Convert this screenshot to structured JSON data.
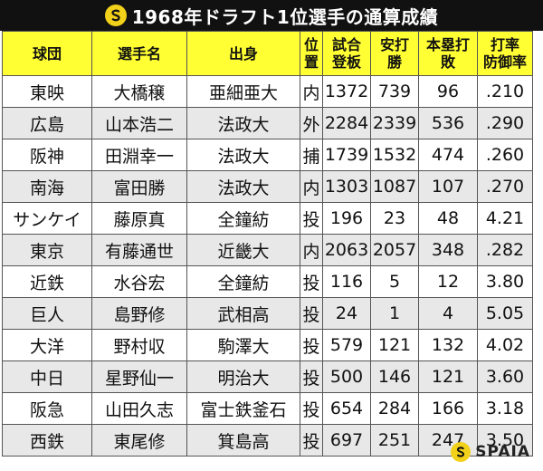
{
  "title": "1968年ドラフト1位選手の通算成績",
  "header": {
    "team": "球団",
    "player": "選手名",
    "origin": "出身",
    "position": [
      "位",
      "置"
    ],
    "games": [
      "試合",
      "登板"
    ],
    "hits": [
      "安打",
      "勝"
    ],
    "hr": [
      "本塁打",
      "敗"
    ],
    "avg": [
      "打率",
      "防御率"
    ]
  },
  "rows": [
    {
      "team": "東映",
      "player": "大橋穣",
      "origin": "亜細亜大",
      "pos": "内",
      "games": "1372",
      "hits": "739",
      "hr": "96",
      "avg": ".210"
    },
    {
      "team": "広島",
      "player": "山本浩二",
      "origin": "法政大",
      "pos": "外",
      "games": "2284",
      "hits": "2339",
      "hr": "536",
      "avg": ".290"
    },
    {
      "team": "阪神",
      "player": "田淵幸一",
      "origin": "法政大",
      "pos": "捕",
      "games": "1739",
      "hits": "1532",
      "hr": "474",
      "avg": ".260"
    },
    {
      "team": "南海",
      "player": "富田勝",
      "origin": "法政大",
      "pos": "内",
      "games": "1303",
      "hits": "1087",
      "hr": "107",
      "avg": ".270"
    },
    {
      "team": "サンケイ",
      "player": "藤原真",
      "origin": "全鐘紡",
      "pos": "投",
      "games": "196",
      "hits": "23",
      "hr": "48",
      "avg": "4.21"
    },
    {
      "team": "東京",
      "player": "有藤通世",
      "origin": "近畿大",
      "pos": "内",
      "games": "2063",
      "hits": "2057",
      "hr": "348",
      "avg": ".282"
    },
    {
      "team": "近鉄",
      "player": "水谷宏",
      "origin": "全鐘紡",
      "pos": "投",
      "games": "116",
      "hits": "5",
      "hr": "12",
      "avg": "3.80"
    },
    {
      "team": "巨人",
      "player": "島野修",
      "origin": "武相高",
      "pos": "投",
      "games": "24",
      "hits": "1",
      "hr": "4",
      "avg": "5.05"
    },
    {
      "team": "大洋",
      "player": "野村収",
      "origin": "駒澤大",
      "pos": "投",
      "games": "579",
      "hits": "121",
      "hr": "132",
      "avg": "4.02"
    },
    {
      "team": "中日",
      "player": "星野仙一",
      "origin": "明治大",
      "pos": "投",
      "games": "500",
      "hits": "146",
      "hr": "121",
      "avg": "3.60"
    },
    {
      "team": "阪急",
      "player": "山田久志",
      "origin": "富士鉄釜石",
      "pos": "投",
      "games": "654",
      "hits": "284",
      "hr": "166",
      "avg": "3.18"
    },
    {
      "team": "西鉄",
      "player": "東尾修",
      "origin": "箕島高",
      "pos": "投",
      "games": "697",
      "hits": "251",
      "hr": "247",
      "avg": "3.50"
    }
  ],
  "footer": {
    "brand": "SPAIA"
  },
  "colors": {
    "title_bg": "#111111",
    "header_bg": "#ffff33",
    "stripe": "#e8e8e8",
    "logo": "#f2d11a"
  }
}
